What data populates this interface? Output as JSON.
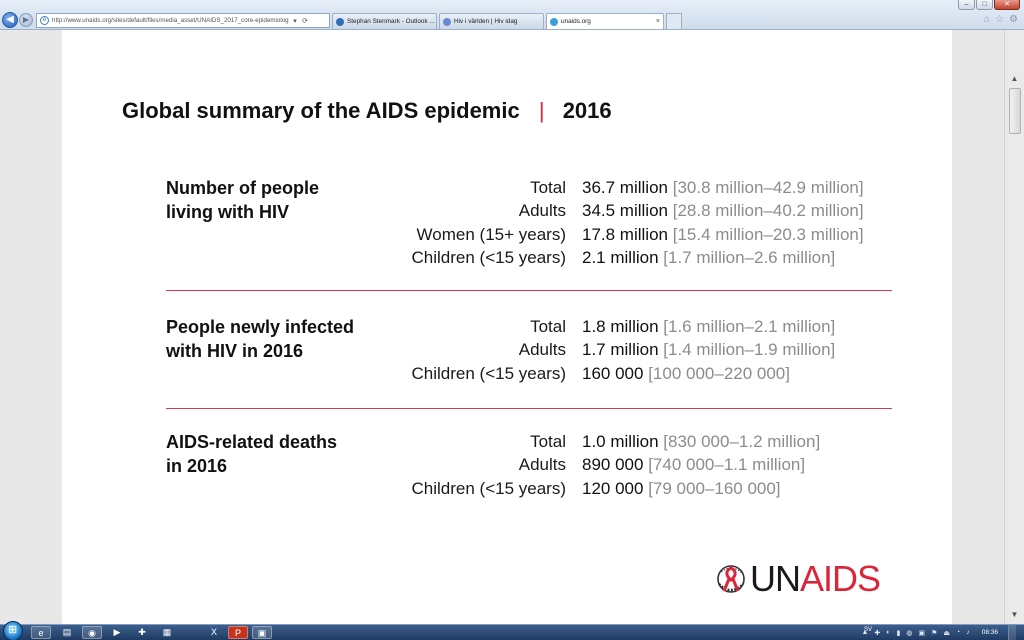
{
  "browser": {
    "url": "http://www.unaids.org/sites/default/files/media_asset/UNAIDS_2017_core-epidemiolog",
    "address_buttons": [
      "▾",
      "⟳"
    ],
    "tabs": [
      {
        "title": "Stephan Stenmark - Outlook ...",
        "icon_color": "#2f6db8",
        "active": false
      },
      {
        "title": "Hiv i världen | Hiv idag",
        "icon_color": "#6a8bd4",
        "active": false
      },
      {
        "title": "unaids.org",
        "icon_color": "#3aa0d8",
        "active": true
      }
    ],
    "tab_close": "×",
    "window_controls": {
      "minimize": "–",
      "maximize": "□",
      "close": "✕"
    },
    "right_icons": [
      "⌂",
      "☆",
      "⚙"
    ]
  },
  "slide": {
    "title": "Global summary of the AIDS epidemic",
    "title_sep": "|",
    "year": "2016",
    "sections": [
      {
        "heading_line1": "Number of people",
        "heading_line2": "living with HIV",
        "rows": [
          {
            "label": "Total",
            "value": "36.7 million",
            "range": "[30.8 million–42.9 million]"
          },
          {
            "label": "Adults",
            "value": "34.5 million",
            "range": "[28.8 million–40.2 million]"
          },
          {
            "label": "Women (15+ years)",
            "value": "17.8 million",
            "range": "[15.4 million–20.3 million]"
          },
          {
            "label": "Children (<15 years)",
            "value": "2.1 million",
            "range": "[1.7 million–2.6 million]"
          }
        ]
      },
      {
        "heading_line1": "People newly infected",
        "heading_line2": "with HIV in 2016",
        "rows": [
          {
            "label": "Total",
            "value": "1.8 million",
            "range": "[1.6 million–2.1 million]"
          },
          {
            "label": "Adults",
            "value": "1.7 million",
            "range": "[1.4 million–1.9 million]"
          },
          {
            "label": "Children (<15 years)",
            "value": "160 000",
            "range": "[100 000–220 000]"
          }
        ]
      },
      {
        "heading_line1": "AIDS-related deaths",
        "heading_line2": "in 2016",
        "rows": [
          {
            "label": "Total",
            "value": "1.0 million",
            "range": "[830 000–1.2 million]"
          },
          {
            "label": "Adults",
            "value": "890 000",
            "range": "[740 000–1.1 million]"
          },
          {
            "label": "Children (<15 years)",
            "value": "120 000",
            "range": "[79 000–160 000]"
          }
        ]
      }
    ],
    "logo": {
      "un": "UN",
      "aids": "AIDS",
      "brand_red": "#d8263b"
    },
    "accent_color": "#d8384c"
  },
  "scrollbar": {
    "up": "▲",
    "down": "▼"
  },
  "taskbar": {
    "apps": [
      {
        "name": "ie-icon",
        "glyph": "e"
      },
      {
        "name": "explorer-icon",
        "glyph": "▤"
      },
      {
        "name": "ie-window-icon",
        "glyph": "◉"
      },
      {
        "name": "media-player-icon",
        "glyph": "▶"
      },
      {
        "name": "add-icon",
        "glyph": "✚"
      },
      {
        "name": "calculator-icon",
        "glyph": "▦"
      },
      {
        "name": "excel-icon",
        "glyph": "X"
      },
      {
        "name": "powerpoint-icon",
        "glyph": "P"
      },
      {
        "name": "terminal-icon",
        "glyph": "▣"
      }
    ],
    "language": "SV",
    "tray_icons": [
      "▲",
      "✚",
      "◐",
      "▮",
      "◍",
      "▣",
      "⚑",
      "⏏",
      "◔",
      "♪"
    ],
    "clock": "08:36"
  }
}
